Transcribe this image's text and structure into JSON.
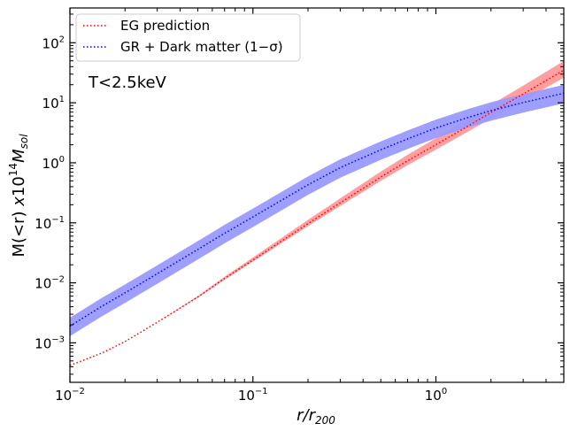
{
  "chart_data": {
    "type": "line",
    "title": "",
    "annotation": "T<2.5keV",
    "xscale": "log",
    "yscale": "log",
    "xlim": [
      0.01,
      5.0
    ],
    "ylim": [
      0.00022,
      380
    ],
    "xlabel": "r/r200",
    "ylabel": "M(<r) x10^14 M_sol",
    "x_ticks": [
      0.01,
      0.1,
      1.0
    ],
    "x_tick_labels": [
      {
        "base": "10",
        "exp": "−2"
      },
      {
        "base": "10",
        "exp": "−1"
      },
      {
        "base": "10",
        "exp": "0"
      }
    ],
    "y_ticks": [
      0.001,
      0.01,
      0.1,
      1,
      10,
      100
    ],
    "y_tick_labels": [
      {
        "base": "10",
        "exp": "−3"
      },
      {
        "base": "10",
        "exp": "−2"
      },
      {
        "base": "10",
        "exp": "−1"
      },
      {
        "base": "10",
        "exp": "0"
      },
      {
        "base": "10",
        "exp": "1"
      },
      {
        "base": "10",
        "exp": "2"
      }
    ],
    "legend_placement": "upper-left",
    "series": [
      {
        "name": "EG prediction",
        "legend_label": "EG prediction",
        "line_color": "#ff0000",
        "band_color": "#ff9a9a",
        "line_style": "dotted",
        "points": [
          [
            0.01,
            0.00042
          ],
          [
            0.015,
            0.00068
          ],
          [
            0.02,
            0.00105
          ],
          [
            0.03,
            0.0022
          ],
          [
            0.05,
            0.0058
          ],
          [
            0.07,
            0.0118
          ],
          [
            0.1,
            0.024
          ],
          [
            0.2,
            0.097
          ],
          [
            0.3,
            0.215
          ],
          [
            0.5,
            0.58
          ],
          [
            0.7,
            1.08
          ],
          [
            1.0,
            2.0
          ],
          [
            1.5,
            4.1
          ],
          [
            2.0,
            6.9
          ],
          [
            3.0,
            14.0
          ],
          [
            5.0,
            35.0
          ]
        ],
        "band_from_x": 0.03,
        "band_low_factor": 0.75,
        "band_high_factor": 1.42
      },
      {
        "name": "GR + Dark matter",
        "legend_label": "GR + Dark matter (1−σ)",
        "line_color": "#0000ff",
        "band_color": "#9a9aff",
        "line_style": "dotted",
        "points": [
          [
            0.01,
            0.0019
          ],
          [
            0.015,
            0.0041
          ],
          [
            0.02,
            0.0068
          ],
          [
            0.03,
            0.0142
          ],
          [
            0.05,
            0.036
          ],
          [
            0.07,
            0.067
          ],
          [
            0.1,
            0.125
          ],
          [
            0.2,
            0.43
          ],
          [
            0.3,
            0.83
          ],
          [
            0.5,
            1.65
          ],
          [
            0.7,
            2.5
          ],
          [
            1.0,
            3.8
          ],
          [
            1.5,
            5.7
          ],
          [
            2.0,
            7.4
          ],
          [
            3.0,
            10.1
          ],
          [
            5.0,
            14.4
          ]
        ],
        "band_from_x": 0.01,
        "band_low_factor": 0.68,
        "band_high_factor": 1.38
      }
    ]
  }
}
